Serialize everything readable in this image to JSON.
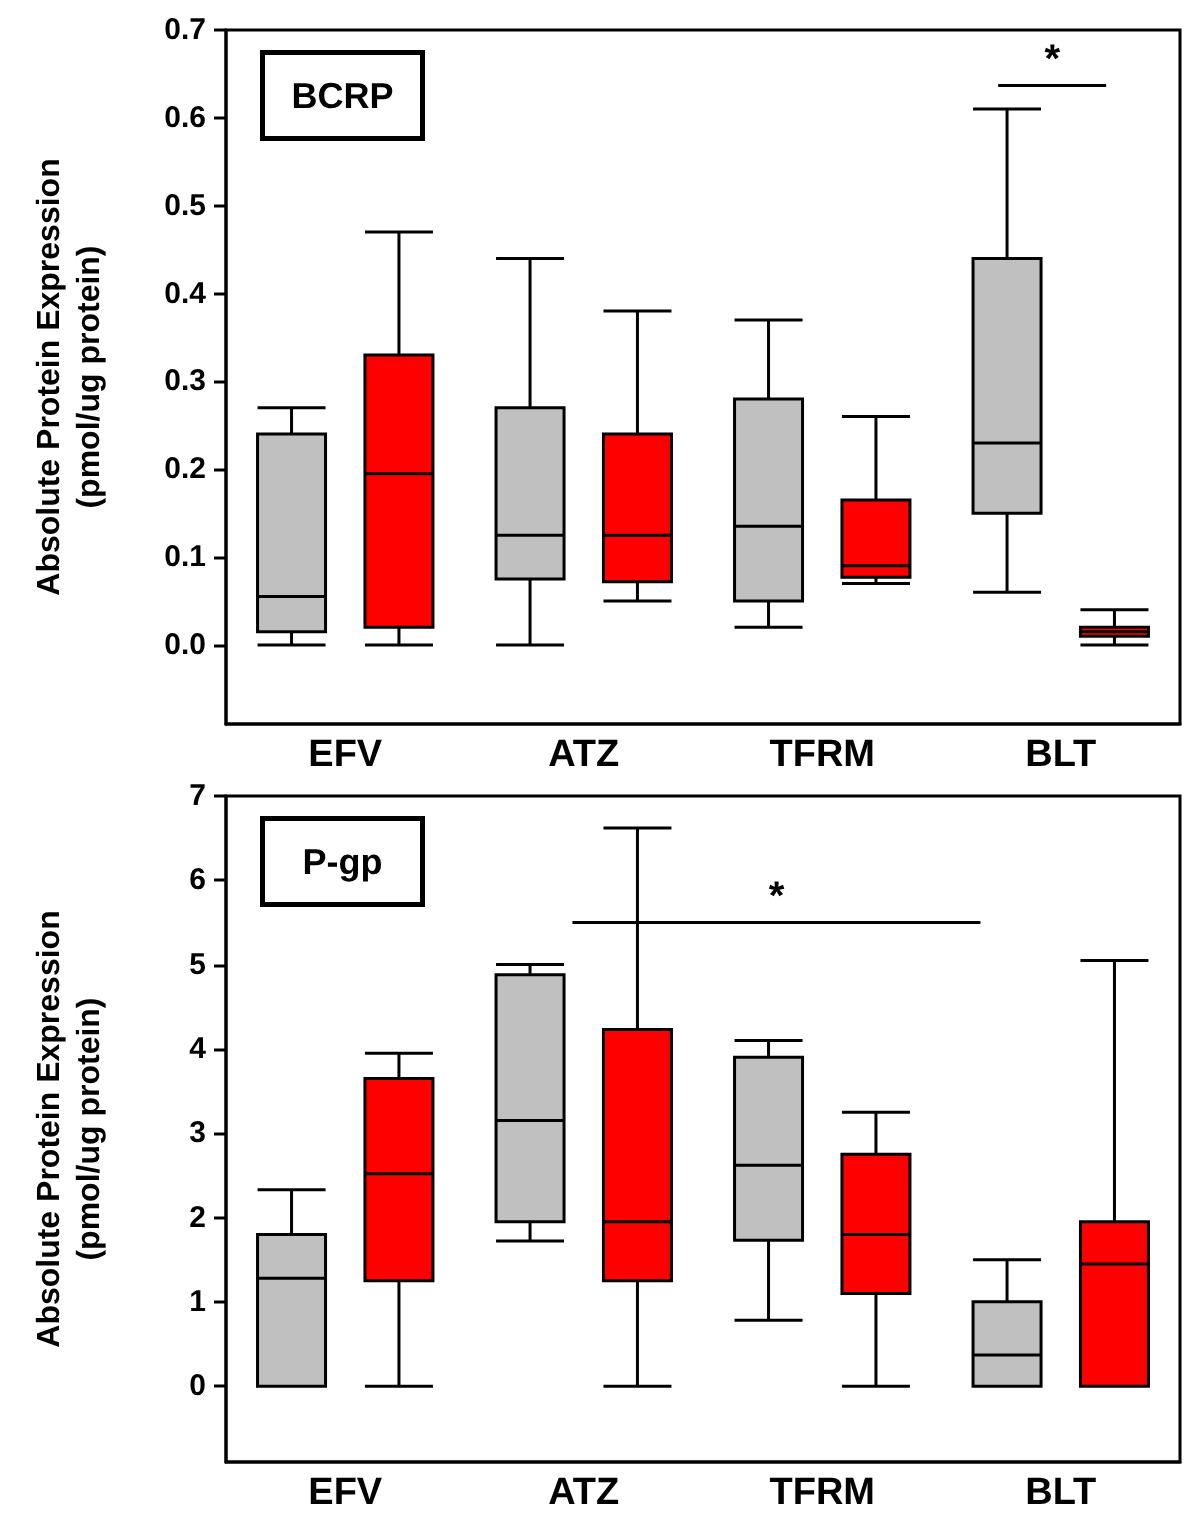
{
  "chart_data": [
    {
      "type": "box",
      "title": "BCRP",
      "ylabel": "Absolute Protein Expression\n(pmol/ug protein)",
      "categories": [
        "EFV",
        "ATZ",
        "TFRM",
        "BLT"
      ],
      "series": [
        {
          "color": "#c0c0c0",
          "boxes": [
            {
              "low": 0,
              "q1": 0.015,
              "median": 0.055,
              "q3": 0.24,
              "high": 0.27
            },
            {
              "low": 0,
              "q1": 0.075,
              "median": 0.125,
              "q3": 0.27,
              "high": 0.44
            },
            {
              "low": 0.02,
              "q1": 0.05,
              "median": 0.135,
              "q3": 0.28,
              "high": 0.37
            },
            {
              "low": 0.06,
              "q1": 0.15,
              "median": 0.23,
              "q3": 0.44,
              "high": 0.61
            }
          ]
        },
        {
          "color": "#ff0000",
          "boxes": [
            {
              "low": 0,
              "q1": 0.02,
              "median": 0.195,
              "q3": 0.33,
              "high": 0.47
            },
            {
              "low": 0.05,
              "q1": 0.072,
              "median": 0.125,
              "q3": 0.24,
              "high": 0.38
            },
            {
              "low": 0.07,
              "q1": 0.077,
              "median": 0.09,
              "q3": 0.165,
              "high": 0.26
            },
            {
              "low": 0,
              "q1": 0.01,
              "median": 0.015,
              "q3": 0.02,
              "high": 0.04
            }
          ]
        }
      ],
      "ylim": [
        -0.09,
        0.7
      ],
      "yticks": [
        {
          "value": 0,
          "label": "0.0"
        },
        0.1,
        0.2,
        0.3,
        0.4,
        0.5,
        0.6,
        0.7
      ],
      "annotations": [
        "*"
      ],
      "grid": false
    },
    {
      "type": "box",
      "title": "P-gp",
      "ylabel": "Absolute Protein Expression\n(pmol/ug protein)",
      "categories": [
        "EFV",
        "ATZ",
        "TFRM",
        "BLT"
      ],
      "series": [
        {
          "color": "#c0c0c0",
          "boxes": [
            {
              "low": 0,
              "q1": 0,
              "median": 1.28,
              "q3": 1.8,
              "high": 2.33
            },
            {
              "low": 1.72,
              "q1": 1.95,
              "median": 3.15,
              "q3": 4.88,
              "high": 5.0
            },
            {
              "low": 0.78,
              "q1": 1.73,
              "median": 2.62,
              "q3": 3.9,
              "high": 4.1
            },
            {
              "low": 0,
              "q1": 0,
              "median": 0.37,
              "q3": 1.0,
              "high": 1.5
            }
          ]
        },
        {
          "color": "#ff0000",
          "boxes": [
            {
              "low": 0,
              "q1": 1.25,
              "median": 2.52,
              "q3": 3.65,
              "high": 3.95
            },
            {
              "low": 0,
              "q1": 1.25,
              "median": 1.95,
              "q3": 4.23,
              "high": 6.62
            },
            {
              "low": 0,
              "q1": 1.1,
              "median": 1.8,
              "q3": 2.75,
              "high": 3.25
            },
            {
              "low": 0,
              "q1": 0,
              "median": 1.45,
              "q3": 1.95,
              "high": 5.05
            }
          ]
        }
      ],
      "ylim": [
        -0.9,
        7
      ],
      "yticks": [
        0,
        1,
        2,
        3,
        4,
        5,
        6,
        7
      ],
      "annotations": [
        "*"
      ],
      "grid": false
    }
  ]
}
